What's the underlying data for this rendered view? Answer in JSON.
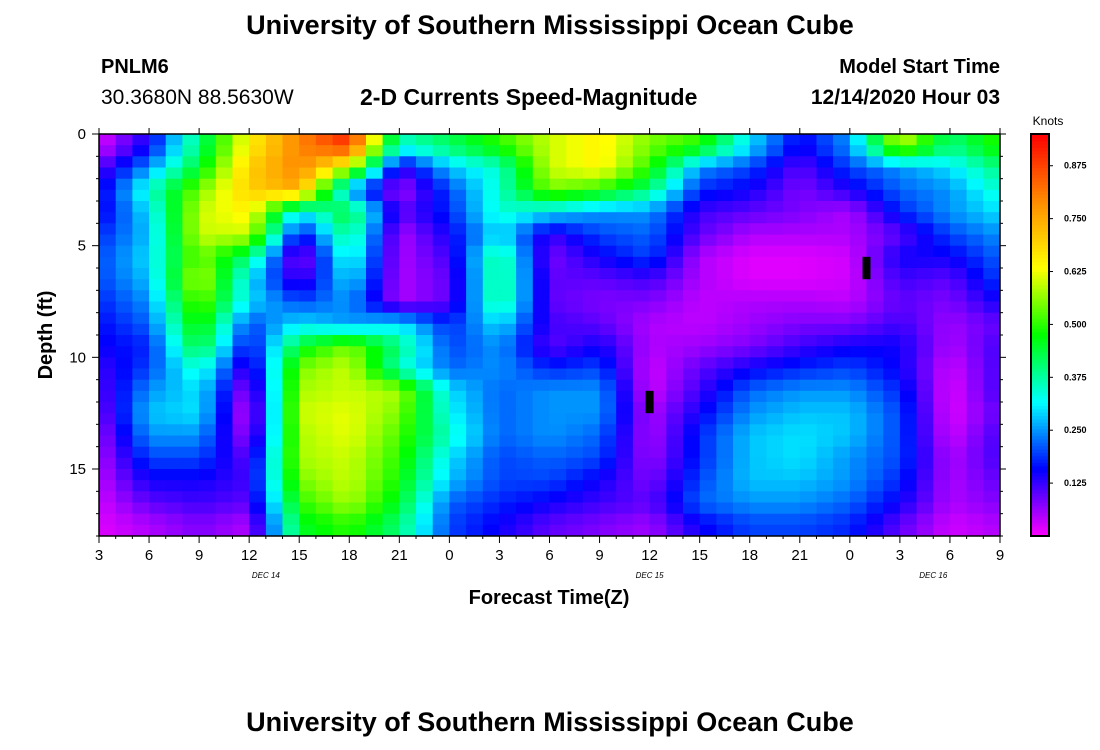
{
  "header": {
    "title": "University of Southern Mississippi Ocean Cube",
    "station_id": "PNLM6",
    "station_coords": "30.3680N 88.5630W",
    "chart_title": "2-D Currents Speed-Magnitude",
    "model_start_label": "Model Start Time",
    "model_start_value": "12/14/2020 Hour 03"
  },
  "footer": {
    "title": "University of Southern Mississippi Ocean Cube"
  },
  "colors": {
    "background": "#ffffff",
    "axis": "#000000",
    "colormap": [
      "#ff00ff",
      "#0000ff",
      "#00ffff",
      "#00ff00",
      "#ffff00",
      "#ff8c00",
      "#ff0000"
    ]
  },
  "chart_data": {
    "type": "heatmap",
    "title": "2-D Currents Speed-Magnitude",
    "xlabel": "Forecast Time(Z)",
    "ylabel": "Depth (ft)",
    "x_tick_labels": [
      "3",
      "6",
      "9",
      "12",
      "15",
      "18",
      "21",
      "0",
      "3",
      "6",
      "9",
      "12",
      "15",
      "18",
      "21",
      "0",
      "3",
      "6",
      "9"
    ],
    "x_tick_hours": [
      0,
      3,
      6,
      9,
      12,
      15,
      18,
      21,
      24,
      27,
      30,
      33,
      36,
      39,
      42,
      45,
      48,
      51,
      54
    ],
    "x_range_hours": [
      0,
      54
    ],
    "date_labels": [
      {
        "text": "DEC 14",
        "hour": 10
      },
      {
        "text": "DEC 15",
        "hour": 33
      },
      {
        "text": "DEC 16",
        "hour": 50
      }
    ],
    "y_ticks": [
      0,
      5,
      10,
      15
    ],
    "ylim": [
      0,
      18
    ],
    "y_inverted": true,
    "colorbar": {
      "label": "Knots",
      "ticks": [
        "0.875",
        "0.750",
        "0.625",
        "0.500",
        "0.375",
        "0.250",
        "0.125"
      ],
      "tick_values": [
        0.875,
        0.75,
        0.625,
        0.5,
        0.375,
        0.25,
        0.125
      ],
      "range": [
        0,
        0.95
      ]
    },
    "depth_levels": [
      0.5,
      1.5,
      2.5,
      3.5,
      4.5,
      5.5,
      6.5,
      7.5,
      8.5,
      9.5,
      10.5,
      11.5,
      12.5,
      13.5,
      14.5,
      15.5,
      16.5,
      17.5
    ],
    "time_hours": [
      0,
      3,
      6,
      9,
      12,
      15,
      18,
      21,
      24,
      27,
      30,
      33,
      36,
      39,
      42,
      45,
      48,
      51,
      54
    ],
    "speed_knots": [
      [
        0.02,
        0.15,
        0.4,
        0.65,
        0.8,
        0.9,
        0.35,
        0.42,
        0.5,
        0.6,
        0.65,
        0.55,
        0.5,
        0.3,
        0.15,
        0.25,
        0.6,
        0.4,
        0.5
      ],
      [
        0.1,
        0.25,
        0.45,
        0.7,
        0.8,
        0.6,
        0.12,
        0.28,
        0.35,
        0.6,
        0.65,
        0.5,
        0.25,
        0.2,
        0.1,
        0.2,
        0.25,
        0.3,
        0.4
      ],
      [
        0.14,
        0.35,
        0.55,
        0.7,
        0.75,
        0.25,
        0.05,
        0.2,
        0.35,
        0.55,
        0.5,
        0.4,
        0.18,
        0.15,
        0.08,
        0.14,
        0.22,
        0.25,
        0.35
      ],
      [
        0.14,
        0.3,
        0.6,
        0.65,
        0.3,
        0.45,
        0.1,
        0.18,
        0.35,
        0.3,
        0.25,
        0.25,
        0.12,
        0.1,
        0.08,
        0.05,
        0.18,
        0.25,
        0.3
      ],
      [
        0.18,
        0.28,
        0.6,
        0.6,
        0.15,
        0.4,
        0.05,
        0.15,
        0.3,
        0.12,
        0.2,
        0.22,
        0.1,
        0.05,
        0.05,
        0.05,
        0.1,
        0.2,
        0.25
      ],
      [
        0.2,
        0.3,
        0.55,
        0.4,
        0.05,
        0.35,
        0.05,
        0.12,
        0.4,
        0.08,
        0.15,
        0.2,
        0.05,
        0.02,
        0.02,
        0.03,
        0.15,
        0.15,
        0.22
      ],
      [
        0.2,
        0.28,
        0.6,
        0.3,
        0.1,
        0.3,
        0.05,
        0.1,
        0.4,
        0.1,
        0.1,
        0.12,
        0.05,
        0.02,
        0.02,
        0.03,
        0.12,
        0.1,
        0.2
      ],
      [
        0.18,
        0.25,
        0.55,
        0.3,
        0.2,
        0.25,
        0.05,
        0.1,
        0.4,
        0.1,
        0.08,
        0.08,
        0.04,
        0.05,
        0.05,
        0.04,
        0.1,
        0.08,
        0.15
      ],
      [
        0.16,
        0.22,
        0.5,
        0.2,
        0.3,
        0.25,
        0.3,
        0.18,
        0.3,
        0.12,
        0.1,
        0.05,
        0.04,
        0.06,
        0.08,
        0.08,
        0.12,
        0.06,
        0.1
      ],
      [
        0.15,
        0.18,
        0.45,
        0.15,
        0.45,
        0.55,
        0.4,
        0.2,
        0.25,
        0.1,
        0.15,
        0.05,
        0.06,
        0.08,
        0.12,
        0.15,
        0.15,
        0.05,
        0.12
      ],
      [
        0.12,
        0.2,
        0.35,
        0.1,
        0.55,
        0.6,
        0.35,
        0.22,
        0.25,
        0.18,
        0.2,
        0.03,
        0.1,
        0.15,
        0.18,
        0.2,
        0.15,
        0.03,
        0.12
      ],
      [
        0.1,
        0.25,
        0.3,
        0.05,
        0.58,
        0.6,
        0.58,
        0.3,
        0.22,
        0.25,
        0.25,
        0.03,
        0.12,
        0.22,
        0.25,
        0.25,
        0.18,
        0.02,
        0.12
      ],
      [
        0.08,
        0.28,
        0.3,
        0.02,
        0.6,
        0.62,
        0.55,
        0.32,
        0.22,
        0.25,
        0.25,
        0.05,
        0.15,
        0.25,
        0.28,
        0.28,
        0.2,
        0.02,
        0.1
      ],
      [
        0.06,
        0.25,
        0.25,
        0.05,
        0.58,
        0.62,
        0.52,
        0.35,
        0.22,
        0.25,
        0.22,
        0.05,
        0.18,
        0.28,
        0.3,
        0.28,
        0.2,
        0.03,
        0.12
      ],
      [
        0.05,
        0.2,
        0.2,
        0.1,
        0.58,
        0.6,
        0.5,
        0.3,
        0.2,
        0.22,
        0.2,
        0.06,
        0.18,
        0.28,
        0.3,
        0.25,
        0.2,
        0.05,
        0.12
      ],
      [
        0.04,
        0.15,
        0.15,
        0.12,
        0.55,
        0.6,
        0.48,
        0.28,
        0.2,
        0.2,
        0.15,
        0.08,
        0.2,
        0.28,
        0.28,
        0.25,
        0.18,
        0.05,
        0.1
      ],
      [
        0.03,
        0.1,
        0.12,
        0.1,
        0.5,
        0.58,
        0.45,
        0.22,
        0.18,
        0.15,
        0.12,
        0.1,
        0.22,
        0.25,
        0.25,
        0.22,
        0.15,
        0.05,
        0.08
      ],
      [
        0.02,
        0.05,
        0.08,
        0.05,
        0.45,
        0.5,
        0.4,
        0.2,
        0.15,
        0.1,
        0.08,
        0.06,
        0.15,
        0.2,
        0.2,
        0.18,
        0.1,
        0.03,
        0.05
      ]
    ],
    "missing_cells": [
      {
        "hour": 33,
        "depth": 12
      },
      {
        "hour": 46,
        "depth": 6
      }
    ]
  }
}
